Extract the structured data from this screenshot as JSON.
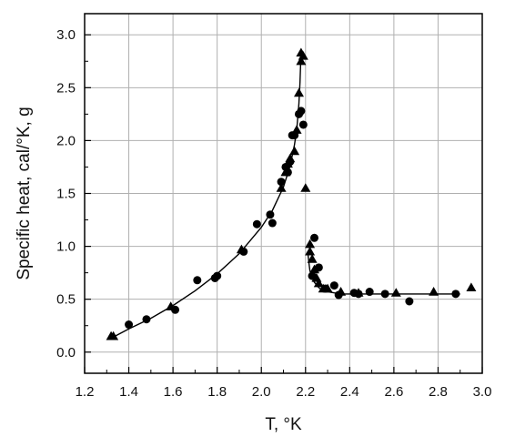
{
  "chart_data": {
    "type": "scatter",
    "xlabel": "T, °K",
    "ylabel": "Specific heat, cal/°K, g",
    "xlim": [
      1.2,
      3.0
    ],
    "ylim": [
      -0.2,
      3.2
    ],
    "x_ticks": [
      "1.2",
      "1.4",
      "1.6",
      "1.8",
      "2.0",
      "2.2",
      "2.4",
      "2.6",
      "2.8",
      "3.0"
    ],
    "y_ticks": [
      "0.0",
      "0.5",
      "1.0",
      "1.5",
      "2.0",
      "2.5",
      "3.0"
    ],
    "grid": true,
    "colors": {
      "marker": "#000000",
      "grid": "#b0b0b0",
      "axis": "#000000"
    },
    "series": [
      {
        "marker": "circle",
        "x": [
          1.4,
          1.48,
          1.61,
          1.71,
          1.79,
          1.8,
          1.92,
          1.98,
          2.04,
          2.05,
          2.09,
          2.11,
          2.12,
          2.13,
          2.14,
          2.15,
          2.17,
          2.18,
          2.19,
          2.23,
          2.24,
          2.26,
          2.29,
          2.33,
          2.35,
          2.42,
          2.44,
          2.49,
          2.56,
          2.67,
          2.88
        ],
        "y": [
          0.26,
          0.31,
          0.4,
          0.68,
          0.7,
          0.72,
          0.95,
          1.21,
          1.3,
          1.22,
          1.61,
          1.75,
          1.7,
          1.8,
          2.05,
          2.05,
          2.25,
          2.28,
          2.15,
          0.72,
          1.08,
          0.8,
          0.6,
          0.63,
          0.54,
          0.56,
          0.55,
          0.57,
          0.55,
          0.48,
          0.55
        ]
      },
      {
        "marker": "triangle",
        "x": [
          1.32,
          1.33,
          1.59,
          1.91,
          2.09,
          2.11,
          2.12,
          2.13,
          2.15,
          2.16,
          2.17,
          2.18,
          2.18,
          2.19,
          2.2,
          2.22,
          2.22,
          2.23,
          2.24,
          2.25,
          2.26,
          2.28,
          2.3,
          2.36,
          2.44,
          2.61,
          2.78,
          2.95
        ],
        "y": [
          0.15,
          0.15,
          0.43,
          0.97,
          1.55,
          1.7,
          1.78,
          1.83,
          1.9,
          2.1,
          2.45,
          2.75,
          2.83,
          2.8,
          1.55,
          1.02,
          0.95,
          0.88,
          0.78,
          0.7,
          0.65,
          0.6,
          0.6,
          0.57,
          0.56,
          0.56,
          0.57,
          0.61
        ]
      }
    ],
    "fit_curve_left": {
      "x": [
        1.31,
        1.4,
        1.5,
        1.6,
        1.7,
        1.8,
        1.9,
        2.0,
        2.05,
        2.1,
        2.13,
        2.15,
        2.16,
        2.17,
        2.175,
        2.18
      ],
      "y": [
        0.12,
        0.22,
        0.32,
        0.44,
        0.58,
        0.74,
        0.93,
        1.18,
        1.34,
        1.56,
        1.76,
        1.96,
        2.1,
        2.35,
        2.55,
        2.85
      ]
    },
    "fit_curve_right": {
      "x": [
        2.21,
        2.215,
        2.22,
        2.23,
        2.24,
        2.26,
        2.28,
        2.3,
        2.33,
        2.37,
        2.45,
        2.6,
        2.8,
        2.9
      ],
      "y": [
        0.95,
        0.85,
        0.77,
        0.7,
        0.66,
        0.61,
        0.58,
        0.57,
        0.56,
        0.55,
        0.55,
        0.55,
        0.55,
        0.55
      ]
    }
  }
}
